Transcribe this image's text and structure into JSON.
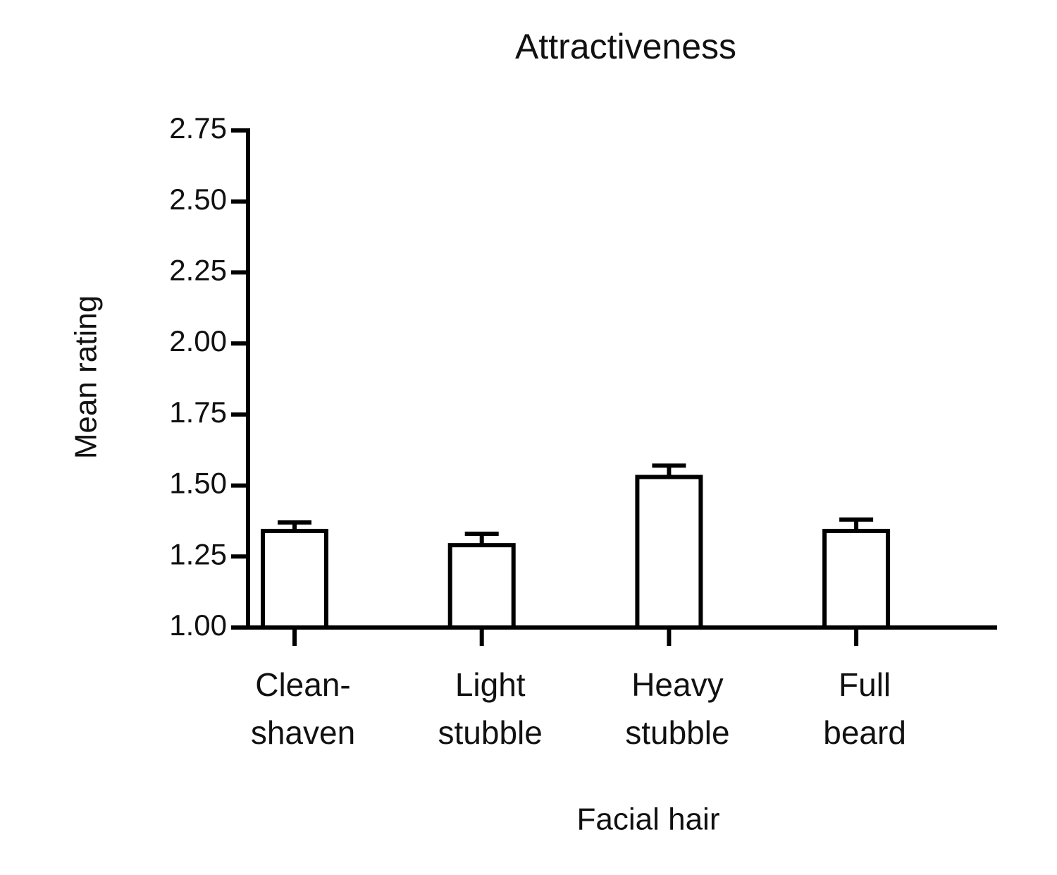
{
  "chart_data": {
    "type": "bar",
    "title": "Attractiveness",
    "x_label": "Facial hair",
    "y_label": "Mean rating",
    "categories": [
      "Clean-\nshaven",
      "Light\nstubble",
      "Heavy\nstubble",
      "Full\nbeard"
    ],
    "values": [
      1.34,
      1.29,
      1.53,
      1.34
    ],
    "errors": [
      0.03,
      0.04,
      0.04,
      0.04
    ],
    "color": "#ffffff",
    "ylim": [
      1,
      2.75
    ],
    "yticks": [
      {
        "value": 1,
        "label": "1.00"
      },
      1.25,
      {
        "value": 1.5,
        "label": "1.50"
      },
      1.75,
      {
        "value": 2,
        "label": "2.00"
      },
      2.25,
      {
        "value": 2.5,
        "label": "2.50"
      },
      2.75
    ],
    "grid": false
  }
}
